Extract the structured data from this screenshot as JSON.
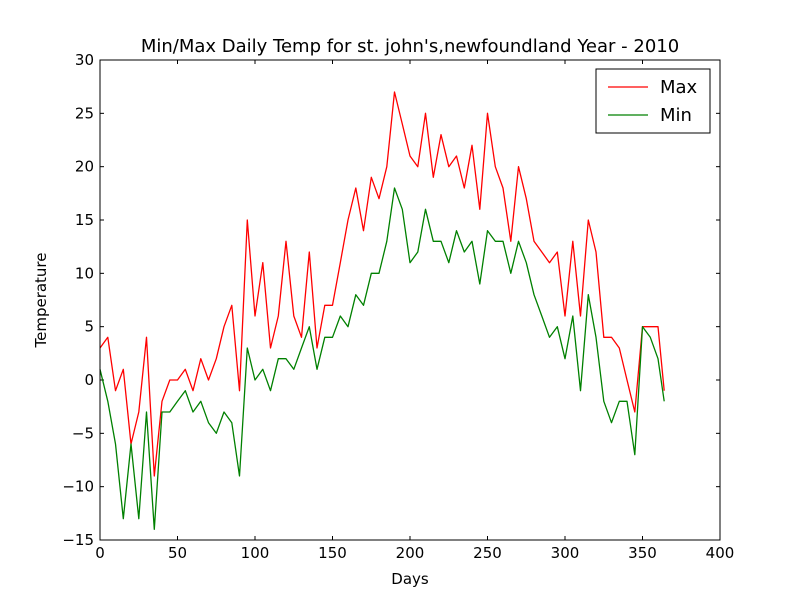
{
  "chart_data": {
    "type": "line",
    "title": "Min/Max Daily Temp for st. john's,newfoundland Year - 2010",
    "xlabel": "Days",
    "ylabel": "Temperature",
    "xlim": [
      0,
      400
    ],
    "ylim": [
      -15,
      30
    ],
    "x_ticks": [
      0,
      50,
      100,
      150,
      200,
      250,
      300,
      350,
      400
    ],
    "y_ticks": [
      -15,
      -10,
      -5,
      0,
      5,
      10,
      15,
      20,
      25,
      30
    ],
    "x_tick_labels": [
      "0",
      "50",
      "100",
      "150",
      "200",
      "250",
      "300",
      "350",
      "400"
    ],
    "y_tick_labels": [
      "−15",
      "−10",
      "−5",
      "0",
      "5",
      "10",
      "15",
      "20",
      "25",
      "30"
    ],
    "grid": false,
    "legend": "top-right",
    "series": [
      {
        "name": "Max",
        "color": "#ff0000",
        "x": [
          0,
          5,
          10,
          15,
          20,
          25,
          30,
          35,
          40,
          45,
          50,
          55,
          60,
          65,
          70,
          75,
          80,
          85,
          90,
          95,
          100,
          105,
          110,
          115,
          120,
          125,
          130,
          135,
          140,
          145,
          150,
          155,
          160,
          165,
          170,
          175,
          180,
          185,
          190,
          195,
          200,
          205,
          210,
          215,
          220,
          225,
          230,
          235,
          240,
          245,
          250,
          255,
          260,
          265,
          270,
          275,
          280,
          285,
          290,
          295,
          300,
          305,
          310,
          315,
          320,
          325,
          330,
          335,
          340,
          345,
          350,
          355,
          360,
          364
        ],
        "y": [
          3,
          4,
          -1,
          1,
          -6,
          -3,
          4,
          -9,
          -2,
          0,
          0,
          1,
          -1,
          2,
          0,
          2,
          5,
          7,
          -1,
          15,
          6,
          11,
          3,
          6,
          13,
          6,
          4,
          12,
          3,
          7,
          7,
          11,
          15,
          18,
          14,
          19,
          17,
          20,
          27,
          24,
          21,
          20,
          25,
          19,
          23,
          20,
          21,
          18,
          22,
          16,
          25,
          20,
          18,
          13,
          20,
          17,
          13,
          12,
          11,
          12,
          6,
          13,
          6,
          15,
          12,
          4,
          4,
          3,
          0,
          -3,
          5,
          5,
          5,
          -1
        ],
        "points": [
          [
            0,
            3
          ],
          [
            5,
            4
          ],
          [
            10,
            -1
          ],
          [
            15,
            1
          ],
          [
            20,
            -6
          ],
          [
            25,
            -3
          ],
          [
            30,
            4
          ],
          [
            35,
            -9
          ],
          [
            40,
            -2
          ],
          [
            45,
            0
          ],
          [
            50,
            0
          ],
          [
            55,
            1
          ],
          [
            60,
            -1
          ],
          [
            65,
            2
          ],
          [
            70,
            0
          ],
          [
            75,
            2
          ],
          [
            80,
            5
          ],
          [
            85,
            7
          ],
          [
            90,
            -1
          ],
          [
            95,
            15
          ],
          [
            100,
            6
          ],
          [
            105,
            11
          ],
          [
            110,
            3
          ],
          [
            115,
            6
          ],
          [
            120,
            13
          ],
          [
            125,
            6
          ],
          [
            130,
            4
          ],
          [
            135,
            12
          ],
          [
            140,
            3
          ],
          [
            145,
            7
          ],
          [
            150,
            7
          ],
          [
            155,
            11
          ],
          [
            160,
            15
          ],
          [
            165,
            18
          ],
          [
            170,
            14
          ],
          [
            175,
            19
          ],
          [
            180,
            17
          ],
          [
            185,
            20
          ],
          [
            190,
            27
          ],
          [
            195,
            24
          ],
          [
            200,
            21
          ],
          [
            205,
            20
          ],
          [
            210,
            25
          ],
          [
            215,
            19
          ],
          [
            220,
            23
          ],
          [
            225,
            20
          ],
          [
            230,
            21
          ],
          [
            235,
            18
          ],
          [
            240,
            22
          ],
          [
            245,
            16
          ],
          [
            250,
            25
          ],
          [
            255,
            20
          ],
          [
            260,
            18
          ],
          [
            265,
            13
          ],
          [
            270,
            20
          ],
          [
            275,
            17
          ],
          [
            280,
            13
          ],
          [
            285,
            12
          ],
          [
            290,
            11
          ],
          [
            295,
            12
          ],
          [
            300,
            6
          ],
          [
            305,
            13
          ],
          [
            310,
            6
          ],
          [
            315,
            15
          ],
          [
            320,
            12
          ],
          [
            325,
            4
          ],
          [
            330,
            4
          ],
          [
            335,
            3
          ],
          [
            340,
            0
          ],
          [
            345,
            -3
          ],
          [
            350,
            5
          ],
          [
            355,
            5
          ],
          [
            360,
            5
          ],
          [
            364,
            -1
          ]
        ]
      },
      {
        "name": "Min",
        "color": "#008000",
        "x": [
          0,
          5,
          10,
          15,
          20,
          25,
          30,
          35,
          40,
          45,
          50,
          55,
          60,
          65,
          70,
          75,
          80,
          85,
          90,
          95,
          100,
          105,
          110,
          115,
          120,
          125,
          130,
          135,
          140,
          145,
          150,
          155,
          160,
          165,
          170,
          175,
          180,
          185,
          190,
          195,
          200,
          205,
          210,
          215,
          220,
          225,
          230,
          235,
          240,
          245,
          250,
          255,
          260,
          265,
          270,
          275,
          280,
          285,
          290,
          295,
          300,
          305,
          310,
          315,
          320,
          325,
          330,
          335,
          340,
          345,
          350,
          355,
          360,
          364
        ],
        "y": [
          1,
          -2,
          -6,
          -13,
          -6,
          -13,
          -3,
          -14,
          -3,
          -3,
          -2,
          -1,
          -3,
          -2,
          -4,
          -5,
          -3,
          -4,
          -9,
          3,
          0,
          1,
          -1,
          2,
          2,
          1,
          3,
          5,
          1,
          4,
          4,
          6,
          5,
          8,
          7,
          10,
          10,
          13,
          18,
          16,
          11,
          12,
          16,
          13,
          13,
          11,
          14,
          12,
          13,
          9,
          14,
          13,
          13,
          10,
          13,
          11,
          8,
          6,
          4,
          5,
          2,
          6,
          -1,
          8,
          4,
          -2,
          -4,
          -2,
          -2,
          -7,
          5,
          4,
          2,
          -2
        ],
        "points": [
          [
            0,
            1
          ],
          [
            5,
            -2
          ],
          [
            10,
            -6
          ],
          [
            15,
            -13
          ],
          [
            20,
            -6
          ],
          [
            25,
            -13
          ],
          [
            30,
            -3
          ],
          [
            35,
            -14
          ],
          [
            40,
            -3
          ],
          [
            45,
            -3
          ],
          [
            50,
            -2
          ],
          [
            55,
            -1
          ],
          [
            60,
            -3
          ],
          [
            65,
            -2
          ],
          [
            70,
            -4
          ],
          [
            75,
            -5
          ],
          [
            80,
            -3
          ],
          [
            85,
            -4
          ],
          [
            90,
            -9
          ],
          [
            95,
            3
          ],
          [
            100,
            0
          ],
          [
            105,
            1
          ],
          [
            110,
            -1
          ],
          [
            115,
            2
          ],
          [
            120,
            2
          ],
          [
            125,
            1
          ],
          [
            130,
            3
          ],
          [
            135,
            5
          ],
          [
            140,
            1
          ],
          [
            145,
            4
          ],
          [
            150,
            4
          ],
          [
            155,
            6
          ],
          [
            160,
            5
          ],
          [
            165,
            8
          ],
          [
            170,
            7
          ],
          [
            175,
            10
          ],
          [
            180,
            10
          ],
          [
            185,
            13
          ],
          [
            190,
            18
          ],
          [
            195,
            16
          ],
          [
            200,
            11
          ],
          [
            205,
            12
          ],
          [
            210,
            16
          ],
          [
            215,
            13
          ],
          [
            220,
            13
          ],
          [
            225,
            11
          ],
          [
            230,
            14
          ],
          [
            235,
            12
          ],
          [
            240,
            13
          ],
          [
            245,
            9
          ],
          [
            250,
            14
          ],
          [
            255,
            13
          ],
          [
            260,
            13
          ],
          [
            265,
            10
          ],
          [
            270,
            13
          ],
          [
            275,
            11
          ],
          [
            280,
            8
          ],
          [
            285,
            6
          ],
          [
            290,
            4
          ],
          [
            295,
            5
          ],
          [
            300,
            2
          ],
          [
            305,
            6
          ],
          [
            310,
            -1
          ],
          [
            315,
            8
          ],
          [
            320,
            4
          ],
          [
            325,
            -2
          ],
          [
            330,
            -4
          ],
          [
            335,
            -2
          ],
          [
            340,
            -2
          ],
          [
            345,
            -7
          ],
          [
            350,
            5
          ],
          [
            355,
            4
          ],
          [
            360,
            2
          ],
          [
            364,
            -2
          ]
        ]
      }
    ]
  }
}
